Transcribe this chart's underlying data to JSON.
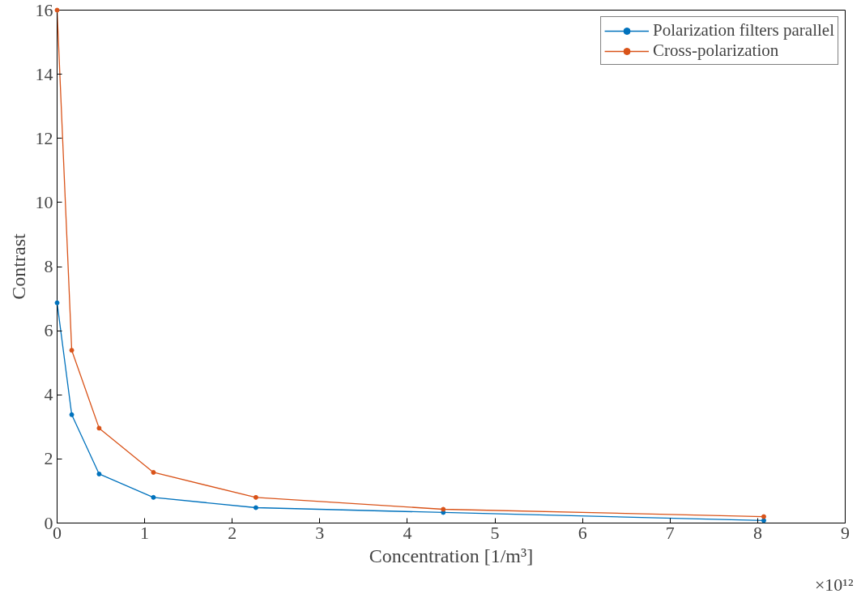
{
  "chart_data": {
    "type": "line",
    "xlabel": "Concentration [1/m³]",
    "ylabel": "Contrast",
    "x": [
      0,
      0.167,
      0.48,
      1.1,
      2.27,
      4.41,
      8.07
    ],
    "series": [
      {
        "name": "Polarization filters parallel",
        "color": "#0072bd",
        "values": [
          6.87,
          3.38,
          1.53,
          0.8,
          0.48,
          0.33,
          0.08
        ]
      },
      {
        "name": "Cross-polarization",
        "color": "#d95319",
        "values": [
          16,
          5.39,
          2.96,
          1.58,
          0.8,
          0.43,
          0.2
        ]
      }
    ],
    "xlim": [
      0,
      9
    ],
    "ylim": [
      0,
      16
    ],
    "xticks": [
      0,
      1,
      2,
      3,
      4,
      5,
      6,
      7,
      8,
      9
    ],
    "yticks": [
      0,
      2,
      4,
      6,
      8,
      10,
      12,
      14,
      16
    ],
    "annotations": [
      "×10¹²"
    ],
    "grid": false,
    "legend": "top right",
    "marker": "circle",
    "line_style": "solid"
  }
}
